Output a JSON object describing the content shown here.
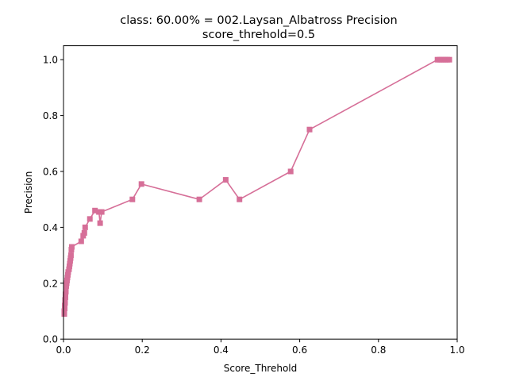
{
  "chart_data": {
    "type": "line",
    "title_line1": "class: 60.00% = 002.Laysan_Albatross Precision",
    "title_line2": "score_threhold=0.5",
    "xlabel": "Score_Threhold",
    "ylabel": "Precision",
    "xlim": [
      0.0,
      1.0
    ],
    "ylim": [
      0.0,
      1.05
    ],
    "xticks": [
      "0.0",
      "0.2",
      "0.4",
      "0.6",
      "0.8",
      "1.0"
    ],
    "xtick_values": [
      0.0,
      0.2,
      0.4,
      0.6,
      0.8,
      1.0
    ],
    "yticks": [
      "0.0",
      "0.2",
      "0.4",
      "0.6",
      "0.8",
      "1.0"
    ],
    "ytick_values": [
      0.0,
      0.2,
      0.4,
      0.6,
      0.8,
      1.0
    ],
    "grid": false,
    "marker": "square",
    "color": "#d66f98",
    "series": [
      {
        "points": [
          [
            0.002,
            0.09
          ],
          [
            0.002,
            0.1
          ],
          [
            0.003,
            0.11
          ],
          [
            0.003,
            0.12
          ],
          [
            0.004,
            0.13
          ],
          [
            0.004,
            0.14
          ],
          [
            0.005,
            0.15
          ],
          [
            0.005,
            0.16
          ],
          [
            0.006,
            0.17
          ],
          [
            0.006,
            0.18
          ],
          [
            0.007,
            0.19
          ],
          [
            0.008,
            0.2
          ],
          [
            0.009,
            0.21
          ],
          [
            0.01,
            0.22
          ],
          [
            0.011,
            0.23
          ],
          [
            0.012,
            0.24
          ],
          [
            0.014,
            0.25
          ],
          [
            0.015,
            0.26
          ],
          [
            0.016,
            0.27
          ],
          [
            0.017,
            0.28
          ],
          [
            0.018,
            0.29
          ],
          [
            0.019,
            0.3
          ],
          [
            0.02,
            0.32
          ],
          [
            0.021,
            0.33
          ],
          [
            0.045,
            0.35
          ],
          [
            0.05,
            0.37
          ],
          [
            0.053,
            0.38
          ],
          [
            0.055,
            0.4
          ],
          [
            0.067,
            0.43
          ],
          [
            0.08,
            0.46
          ],
          [
            0.09,
            0.455
          ],
          [
            0.093,
            0.415
          ],
          [
            0.097,
            0.455
          ],
          [
            0.175,
            0.5
          ],
          [
            0.198,
            0.555
          ],
          [
            0.345,
            0.5
          ],
          [
            0.412,
            0.57
          ],
          [
            0.447,
            0.5
          ],
          [
            0.577,
            0.6
          ],
          [
            0.625,
            0.75
          ],
          [
            0.95,
            1.0
          ],
          [
            0.955,
            1.0
          ],
          [
            0.96,
            1.0
          ],
          [
            0.965,
            1.0
          ],
          [
            0.97,
            1.0
          ],
          [
            0.975,
            1.0
          ],
          [
            0.98,
            1.0
          ]
        ]
      }
    ]
  }
}
